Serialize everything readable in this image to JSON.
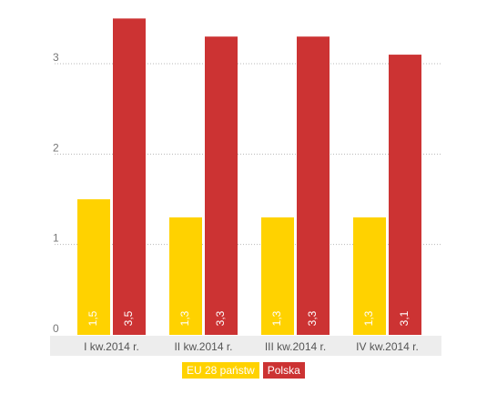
{
  "chart_data": {
    "type": "bar",
    "categories": [
      "I kw.2014 r.",
      "II kw.2014 r.",
      "III kw.2014 r.",
      "IV kw.2014 r."
    ],
    "series": [
      {
        "name": "EU 28 państw",
        "values": [
          1.5,
          1.3,
          1.3,
          1.3
        ],
        "labels": [
          "1,5",
          "1,3",
          "1,3",
          "1,3"
        ],
        "color": "#ffd200"
      },
      {
        "name": "Polska",
        "values": [
          3.5,
          3.3,
          3.3,
          3.1
        ],
        "labels": [
          "3,5",
          "3,3",
          "3,3",
          "3,1"
        ],
        "color": "#cc3333"
      }
    ],
    "yticks": [
      0,
      1,
      2,
      3
    ],
    "ylim": [
      0,
      3.5
    ],
    "grid": true,
    "legend_position": "bottom"
  }
}
